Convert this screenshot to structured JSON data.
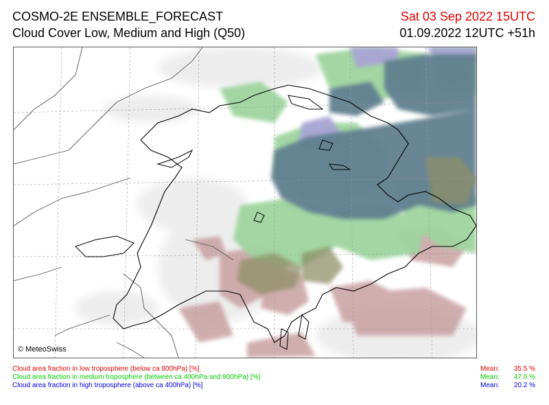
{
  "header": {
    "model": "COSMO-2E ENSEMBLE_FORECAST",
    "product": "Cloud Cover Low, Medium and High (Q50)",
    "valid_time": "Sat 03 Sep 2022 15UTC",
    "run_time": "01.09.2022 12UTC +51h"
  },
  "map": {
    "copyright": "© MeteoSwiss"
  },
  "legend": [
    {
      "text": "Cloud area fraction in low troposphere (below ca 800hPa) [%]",
      "color": "#e00000",
      "mean_label": "Mean:",
      "mean_value": "35.5 %"
    },
    {
      "text": "Cloud area fraction in medium troposphere (between ca 400hPa and 800hPa) [%]",
      "color": "#00cc00",
      "mean_label": "Mean:",
      "mean_value": "47.0 %"
    },
    {
      "text": "Cloud area fraction in high troposphere (above ca 400hPa) [%]",
      "color": "#0000dd",
      "mean_label": "Mean:",
      "mean_value": "20.2 %"
    }
  ],
  "colors": {
    "low_cloud": "#c9a0a0",
    "medium_cloud": "#9fd49f",
    "high_cloud": "#a9a3d8",
    "combined_cloud": "#61808f",
    "light_haze": "#ededed"
  }
}
